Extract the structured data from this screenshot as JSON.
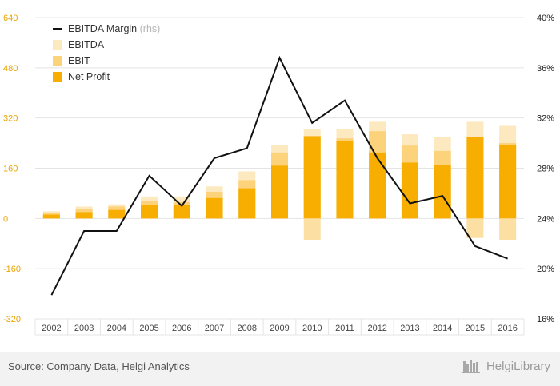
{
  "chart_data": {
    "type": "bar",
    "categories": [
      "2002",
      "2003",
      "2004",
      "2005",
      "2006",
      "2007",
      "2008",
      "2009",
      "2010",
      "2011",
      "2012",
      "2013",
      "2014",
      "2015",
      "2016"
    ],
    "series": [
      {
        "name": "EBITDA",
        "kind": "bar",
        "axis": "left",
        "color": "#fde9bf",
        "values": [
          23,
          38,
          45,
          70,
          70,
          102,
          150,
          235,
          285,
          285,
          308,
          268,
          260,
          308,
          295
        ]
      },
      {
        "name": "EBIT",
        "kind": "bar",
        "axis": "left",
        "color": "#fcd27a",
        "values": [
          18,
          30,
          38,
          55,
          52,
          85,
          122,
          210,
          262,
          255,
          278,
          232,
          215,
          260,
          240
        ]
      },
      {
        "name": "Net Profit",
        "kind": "bar",
        "axis": "left",
        "color": "#f7ae00",
        "values": [
          12,
          20,
          27,
          42,
          44,
          65,
          96,
          168,
          262,
          248,
          210,
          178,
          170,
          258,
          235
        ],
        "negative_values": [
          0,
          0,
          0,
          0,
          0,
          0,
          0,
          0,
          -68,
          0,
          0,
          0,
          0,
          -62,
          -68
        ]
      },
      {
        "name": "EBITDA Margin",
        "kind": "line",
        "axis": "right",
        "color": "#111111",
        "values": [
          17.9,
          23.0,
          23.0,
          27.4,
          25.0,
          28.8,
          29.6,
          36.8,
          31.6,
          33.4,
          28.8,
          25.2,
          25.8,
          21.8,
          20.8
        ]
      }
    ],
    "legend": [
      {
        "label": "EBITDA Margin",
        "note": "(rhs)",
        "swatch": "line",
        "color": "#111111"
      },
      {
        "label": "EBITDA",
        "note": "",
        "swatch": "box",
        "color": "#fde9bf"
      },
      {
        "label": "EBIT",
        "note": "",
        "swatch": "box",
        "color": "#fcd27a"
      },
      {
        "label": "Net Profit",
        "note": "",
        "swatch": "box",
        "color": "#f7ae00"
      }
    ],
    "legend_position": "top-left",
    "ylim": [
      -320,
      640
    ],
    "y_ticks": [
      "640",
      "480",
      "320",
      "160",
      "0",
      "-160",
      "-320"
    ],
    "y2lim": [
      16,
      40
    ],
    "y2_ticks": [
      "40%",
      "36%",
      "32%",
      "28%",
      "24%",
      "20%",
      "16%"
    ],
    "grid": "horizontal",
    "title": "",
    "xlabel": "",
    "ylabel": ""
  },
  "footer": {
    "source": "Source: Company Data, Helgi Analytics",
    "brand": "HelgiLibrary"
  }
}
